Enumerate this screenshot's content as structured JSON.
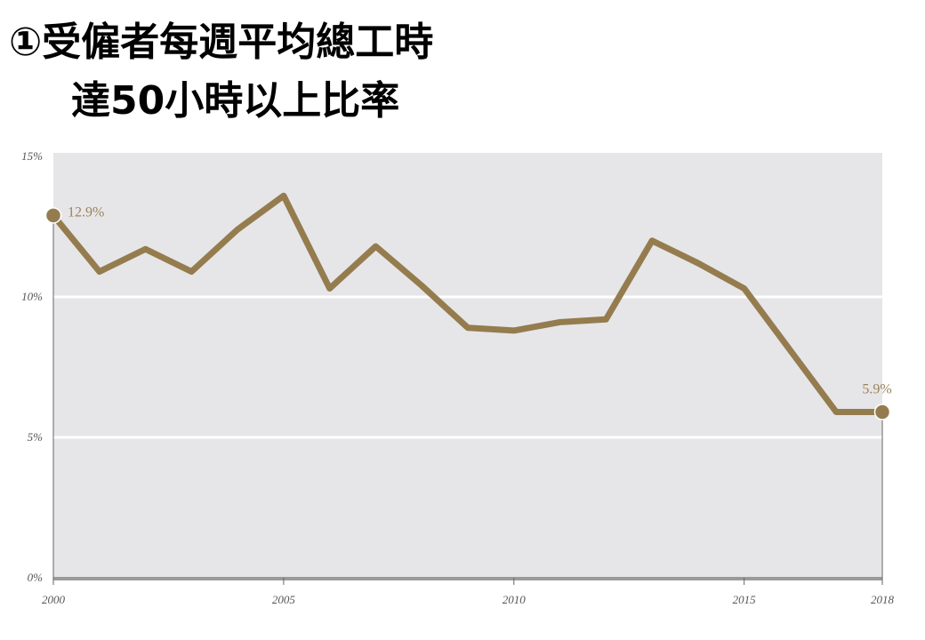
{
  "chart_data": {
    "type": "line",
    "title": "①受僱者每週平均總工時",
    "subtitle": "達50小時以上比率",
    "x": [
      2000,
      2001,
      2002,
      2003,
      2004,
      2005,
      2006,
      2007,
      2008,
      2009,
      2010,
      2011,
      2012,
      2013,
      2014,
      2015,
      2016,
      2017,
      2018
    ],
    "values": [
      12.9,
      10.9,
      11.7,
      10.9,
      12.4,
      13.6,
      10.3,
      11.8,
      10.4,
      8.9,
      8.8,
      9.1,
      9.2,
      12.0,
      11.2,
      10.3,
      8.1,
      5.9,
      5.9
    ],
    "value_labels": [
      "12.9%",
      null,
      null,
      null,
      null,
      null,
      null,
      null,
      null,
      null,
      null,
      null,
      null,
      null,
      null,
      null,
      null,
      null,
      "5.9%"
    ],
    "color": "#957c4e",
    "xlim": [
      2000,
      2018
    ],
    "xticks": [
      2000,
      2005,
      2010,
      2015,
      2018
    ],
    "ylim": [
      0,
      15
    ],
    "yticks": [
      {
        "value": 0,
        "label": "0%"
      },
      {
        "value": 5,
        "label": "5%"
      },
      {
        "value": 10,
        "label": "10%"
      },
      {
        "value": 15,
        "label": "15%"
      }
    ],
    "grid": true
  }
}
